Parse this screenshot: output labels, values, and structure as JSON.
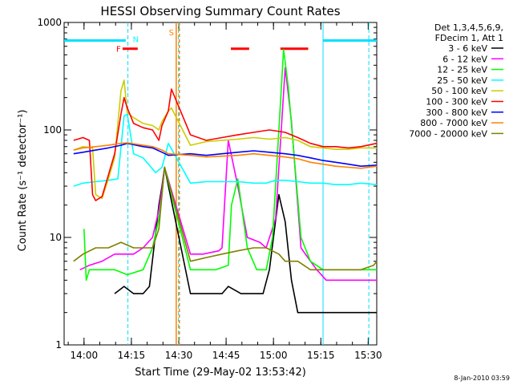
{
  "chart_data": {
    "type": "line",
    "title": "HESSI Observing Summary Count Rates",
    "xlabel": "Start Time (29-May-02 13:53:42)",
    "ylabel": "Count Rate (s⁻¹ detector⁻¹)",
    "y_scale": "log",
    "ylim": [
      1,
      1000
    ],
    "xlim_minutes_from_start": [
      0,
      99
    ],
    "x_ticks": [
      {
        "label": "14:00",
        "min": 6.3
      },
      {
        "label": "14:15",
        "min": 21.3
      },
      {
        "label": "14:30",
        "min": 36.3
      },
      {
        "label": "14:45",
        "min": 51.3
      },
      {
        "label": "15:00",
        "min": 66.3
      },
      {
        "label": "15:15",
        "min": 81.3
      },
      {
        "label": "15:30",
        "min": 96.3
      }
    ],
    "y_ticks": [
      {
        "label": "1",
        "v": 1
      },
      {
        "label": "10",
        "v": 10
      },
      {
        "label": "100",
        "v": 100
      },
      {
        "label": "1000",
        "v": 1000
      }
    ],
    "legend": {
      "placement": "right",
      "header": [
        "Det 1,3,4,5,6,9,",
        "FDecim 1, Att 1"
      ]
    },
    "series": [
      {
        "name": "3 - 6 keV",
        "color": "#000000",
        "points": [
          [
            16,
            3
          ],
          [
            19,
            3.5
          ],
          [
            22,
            3
          ],
          [
            25,
            3
          ],
          [
            27,
            3.5
          ],
          [
            30,
            20
          ],
          [
            31,
            30
          ],
          [
            31.8,
            45
          ],
          [
            40,
            3
          ],
          [
            47,
            3
          ],
          [
            50,
            3
          ],
          [
            52,
            3.5
          ],
          [
            56,
            3
          ],
          [
            63,
            3
          ],
          [
            65,
            5
          ],
          [
            68,
            25
          ],
          [
            70,
            14
          ],
          [
            72,
            4
          ],
          [
            74,
            2
          ],
          [
            99,
            2
          ]
        ]
      },
      {
        "name": "6 - 12 keV",
        "color": "#ff00ff",
        "points": [
          [
            5,
            5
          ],
          [
            8,
            5.5
          ],
          [
            12,
            6
          ],
          [
            16,
            7
          ],
          [
            18,
            7
          ],
          [
            22,
            7
          ],
          [
            25,
            8
          ],
          [
            28,
            10
          ],
          [
            30,
            18
          ],
          [
            31,
            28
          ],
          [
            31.8,
            45
          ],
          [
            40,
            7
          ],
          [
            44,
            7
          ],
          [
            49,
            7.5
          ],
          [
            50,
            8
          ],
          [
            52,
            80
          ],
          [
            55,
            30
          ],
          [
            58,
            10
          ],
          [
            62,
            9
          ],
          [
            64,
            8
          ],
          [
            67,
            15
          ],
          [
            70,
            380
          ],
          [
            72,
            120
          ],
          [
            74,
            20
          ],
          [
            75,
            8
          ],
          [
            78,
            6
          ],
          [
            80,
            5
          ],
          [
            83,
            4
          ],
          [
            99,
            4
          ]
        ]
      },
      {
        "name": "12 - 25 keV",
        "color": "#00ff00",
        "points": [
          [
            6.3,
            12
          ],
          [
            7,
            4
          ],
          [
            8,
            5
          ],
          [
            12,
            5
          ],
          [
            16,
            5
          ],
          [
            20,
            4.5
          ],
          [
            25,
            5
          ],
          [
            28,
            8
          ],
          [
            30,
            15
          ],
          [
            31,
            25
          ],
          [
            31.8,
            45
          ],
          [
            40,
            5
          ],
          [
            44,
            5
          ],
          [
            48,
            5
          ],
          [
            52,
            5.5
          ],
          [
            53,
            20
          ],
          [
            55,
            35
          ],
          [
            58,
            8
          ],
          [
            61,
            5
          ],
          [
            64,
            5
          ],
          [
            66,
            10
          ],
          [
            68,
            100
          ],
          [
            69.5,
            560
          ],
          [
            71,
            250
          ],
          [
            73,
            50
          ],
          [
            75,
            10
          ],
          [
            78,
            6
          ],
          [
            82,
            5
          ],
          [
            99,
            5
          ]
        ]
      },
      {
        "name": "25 - 50 keV",
        "color": "#00ffff",
        "points": [
          [
            3,
            30
          ],
          [
            6,
            32
          ],
          [
            10,
            33
          ],
          [
            14,
            34
          ],
          [
            17,
            35
          ],
          [
            19,
            135
          ],
          [
            20,
            140
          ],
          [
            22,
            60
          ],
          [
            25,
            55
          ],
          [
            29,
            40
          ],
          [
            31,
            45
          ],
          [
            33,
            75
          ],
          [
            40,
            32
          ],
          [
            45,
            33
          ],
          [
            50,
            33
          ],
          [
            55,
            33
          ],
          [
            60,
            32
          ],
          [
            64,
            32
          ],
          [
            67,
            34
          ],
          [
            70,
            34
          ],
          [
            74,
            33
          ],
          [
            78,
            32
          ],
          [
            82,
            32
          ],
          [
            86,
            31
          ],
          [
            90,
            31
          ],
          [
            94,
            32
          ],
          [
            99,
            31
          ]
        ]
      },
      {
        "name": "50 - 100 keV",
        "color": "#cccc00",
        "points": [
          [
            3,
            65
          ],
          [
            6,
            70
          ],
          [
            9,
            68
          ],
          [
            10,
            25
          ],
          [
            12,
            23
          ],
          [
            14,
            35
          ],
          [
            16,
            55
          ],
          [
            18,
            230
          ],
          [
            19,
            290
          ],
          [
            20,
            145
          ],
          [
            22,
            130
          ],
          [
            25,
            115
          ],
          [
            28,
            110
          ],
          [
            30,
            100
          ],
          [
            31,
            120
          ],
          [
            33,
            150
          ],
          [
            34,
            160
          ],
          [
            40,
            72
          ],
          [
            45,
            78
          ],
          [
            50,
            80
          ],
          [
            55,
            82
          ],
          [
            60,
            85
          ],
          [
            65,
            82
          ],
          [
            70,
            85
          ],
          [
            74,
            80
          ],
          [
            78,
            70
          ],
          [
            82,
            68
          ],
          [
            86,
            66
          ],
          [
            90,
            66
          ],
          [
            94,
            68
          ],
          [
            99,
            68
          ]
        ]
      },
      {
        "name": "100 - 300 keV",
        "color": "#ff0000",
        "points": [
          [
            3,
            80
          ],
          [
            6,
            85
          ],
          [
            8,
            80
          ],
          [
            9,
            25
          ],
          [
            10,
            22
          ],
          [
            12,
            24
          ],
          [
            14,
            38
          ],
          [
            16,
            60
          ],
          [
            18,
            140
          ],
          [
            19,
            200
          ],
          [
            20,
            160
          ],
          [
            22,
            115
          ],
          [
            25,
            105
          ],
          [
            28,
            100
          ],
          [
            30,
            80
          ],
          [
            31,
            110
          ],
          [
            33,
            150
          ],
          [
            34,
            240
          ],
          [
            40,
            90
          ],
          [
            45,
            80
          ],
          [
            50,
            85
          ],
          [
            55,
            90
          ],
          [
            60,
            95
          ],
          [
            65,
            100
          ],
          [
            70,
            95
          ],
          [
            74,
            85
          ],
          [
            78,
            75
          ],
          [
            82,
            70
          ],
          [
            86,
            70
          ],
          [
            90,
            68
          ],
          [
            94,
            70
          ],
          [
            99,
            75
          ]
        ]
      },
      {
        "name": "300 - 800 keV",
        "color": "#0000ff",
        "points": [
          [
            3,
            60
          ],
          [
            6,
            62
          ],
          [
            10,
            65
          ],
          [
            14,
            68
          ],
          [
            18,
            72
          ],
          [
            20,
            75
          ],
          [
            25,
            70
          ],
          [
            28,
            68
          ],
          [
            31,
            62
          ],
          [
            33,
            58
          ],
          [
            40,
            60
          ],
          [
            45,
            58
          ],
          [
            50,
            60
          ],
          [
            55,
            62
          ],
          [
            60,
            64
          ],
          [
            65,
            62
          ],
          [
            70,
            60
          ],
          [
            74,
            58
          ],
          [
            78,
            55
          ],
          [
            82,
            52
          ],
          [
            86,
            50
          ],
          [
            90,
            48
          ],
          [
            94,
            46
          ],
          [
            99,
            47
          ]
        ]
      },
      {
        "name": "800 - 7000 keV",
        "color": "#ff8000",
        "points": [
          [
            3,
            65
          ],
          [
            6,
            68
          ],
          [
            10,
            70
          ],
          [
            14,
            72
          ],
          [
            18,
            75
          ],
          [
            20,
            76
          ],
          [
            25,
            72
          ],
          [
            28,
            70
          ],
          [
            31,
            65
          ],
          [
            33,
            60
          ],
          [
            40,
            58
          ],
          [
            45,
            56
          ],
          [
            50,
            57
          ],
          [
            55,
            58
          ],
          [
            60,
            60
          ],
          [
            65,
            58
          ],
          [
            70,
            56
          ],
          [
            74,
            54
          ],
          [
            78,
            50
          ],
          [
            82,
            48
          ],
          [
            86,
            46
          ],
          [
            90,
            45
          ],
          [
            94,
            44
          ],
          [
            99,
            46
          ]
        ]
      },
      {
        "name": "7000 - 20000 keV",
        "color": "#808000",
        "points": [
          [
            3,
            6
          ],
          [
            6,
            7
          ],
          [
            10,
            8
          ],
          [
            14,
            8
          ],
          [
            18,
            9
          ],
          [
            22,
            8
          ],
          [
            25,
            8
          ],
          [
            28,
            8
          ],
          [
            30,
            12
          ],
          [
            31,
            25
          ],
          [
            31.8,
            45
          ],
          [
            40,
            6
          ],
          [
            45,
            6.5
          ],
          [
            50,
            7
          ],
          [
            55,
            7.5
          ],
          [
            60,
            8
          ],
          [
            64,
            8
          ],
          [
            68,
            7
          ],
          [
            70,
            6
          ],
          [
            74,
            6
          ],
          [
            78,
            5
          ],
          [
            82,
            5
          ],
          [
            86,
            5
          ],
          [
            90,
            5
          ],
          [
            94,
            5
          ],
          [
            98,
            5.5
          ],
          [
            99,
            6
          ]
        ]
      }
    ],
    "markers": {
      "N": {
        "label": "N",
        "color": "#00ffff",
        "min": 20.2
      },
      "S": {
        "label": "S",
        "color": "#ff8000",
        "min": 36.2
      },
      "F": {
        "label": "F",
        "color": "#ff0000",
        "min": 17.5
      }
    },
    "night_bars": [
      [
        0,
        19.5
      ],
      [
        82,
        99
      ]
    ],
    "flare_bars": [
      [
        18.5,
        23.3
      ],
      [
        52.8,
        58.6
      ],
      [
        68.5,
        77.3
      ]
    ],
    "dashed_cyan_lines_min": [
      20.2,
      36.2,
      96.5
    ],
    "solid_cyan_line_min": 82.0,
    "orange_band_min": [
      35.5,
      36.5
    ]
  },
  "footer_timestamp": "8-Jan-2010 03:59"
}
